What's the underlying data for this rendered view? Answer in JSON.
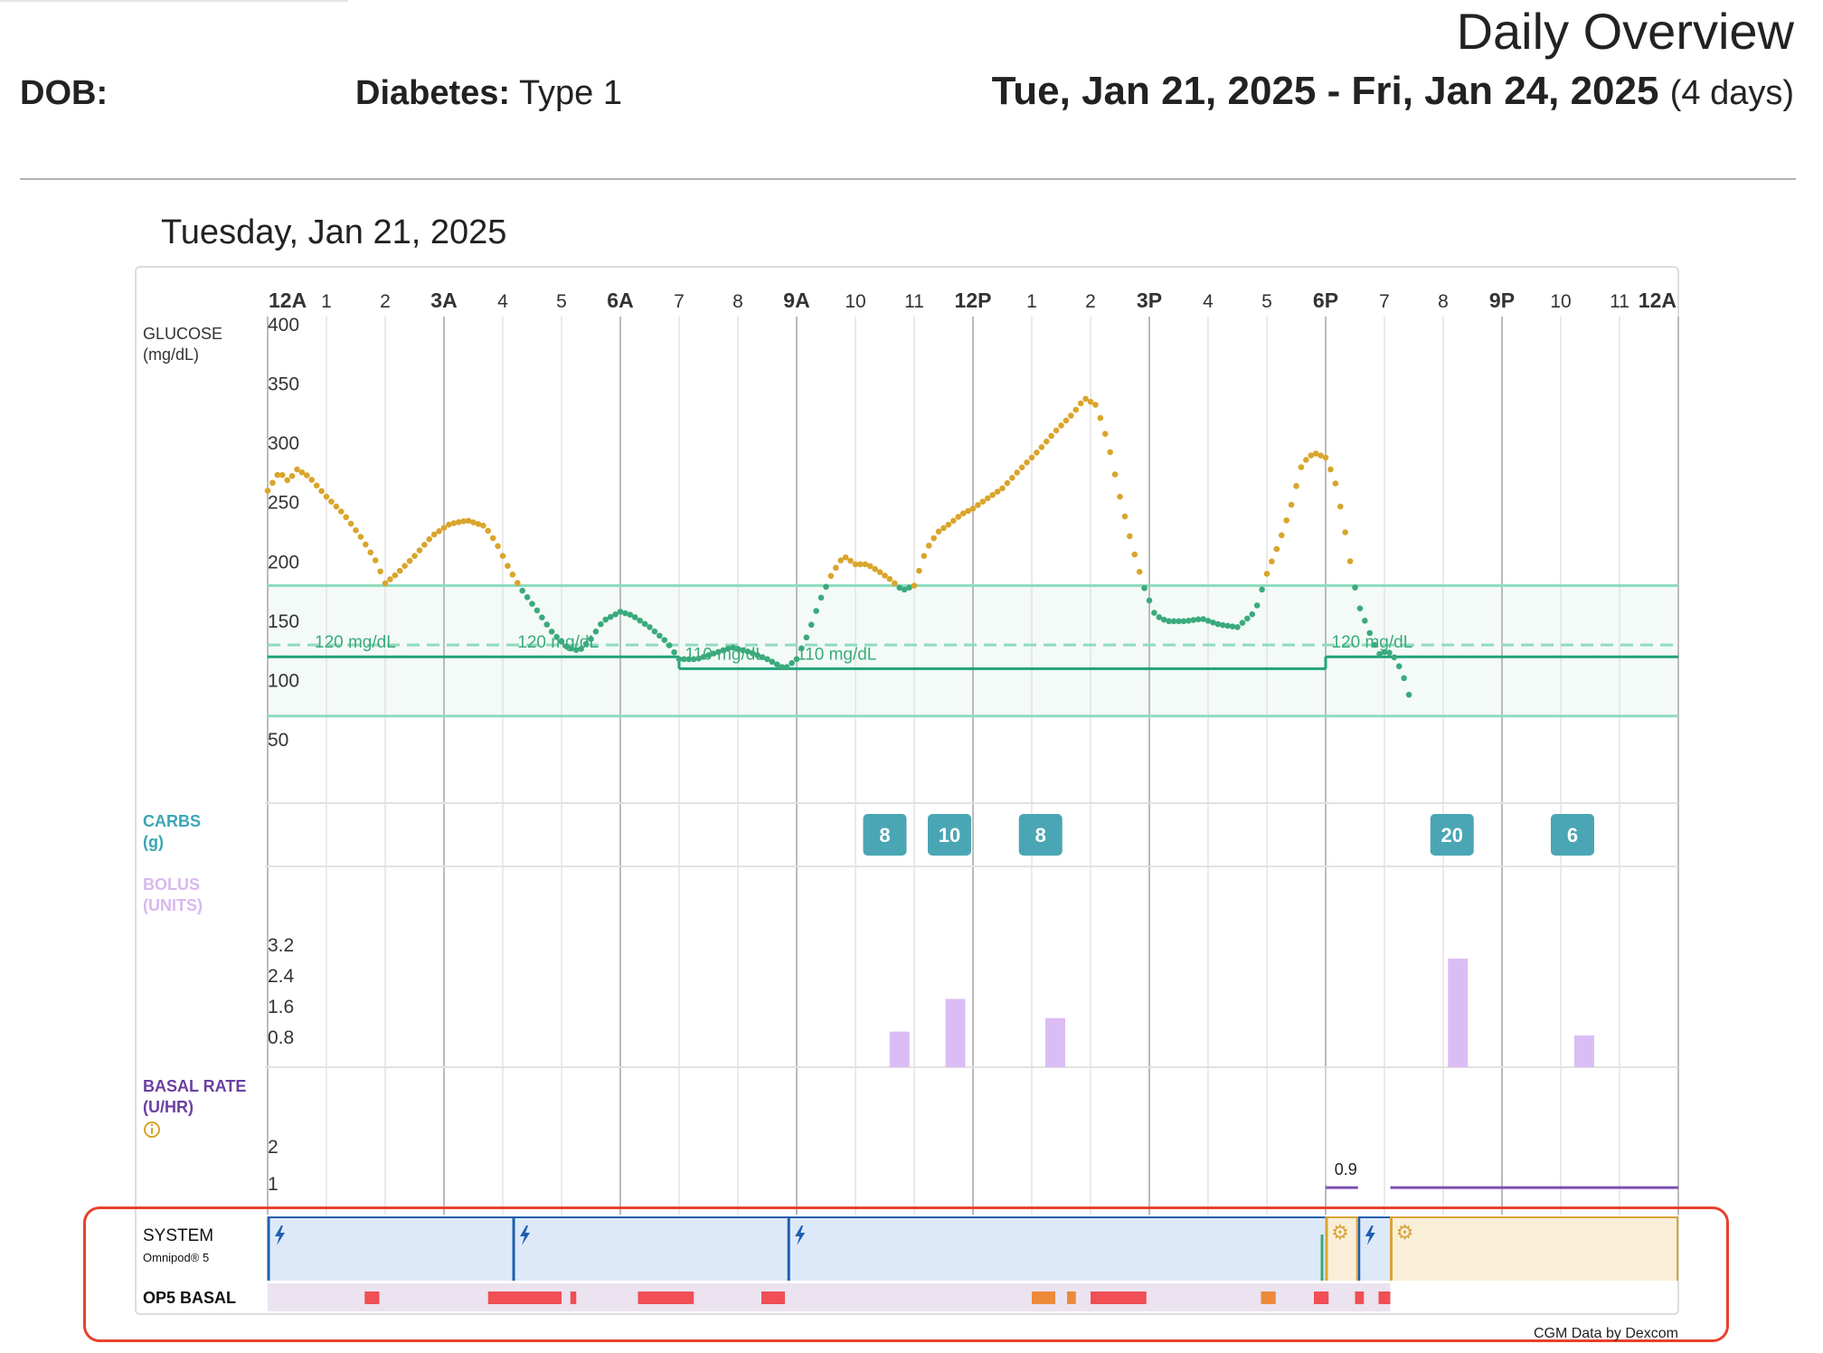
{
  "report": {
    "title": "Daily Overview",
    "dob_label": "DOB:",
    "diabetes_label": "Diabetes:",
    "diabetes_value": "Type 1",
    "date_range": "Tue, Jan 21, 2025 - Fri, Jan 24, 2025",
    "date_range_days": "(4 days)"
  },
  "day": {
    "title": "Tuesday, Jan 21, 2025",
    "hour_labels": [
      {
        "h": 0,
        "t": "12A",
        "major": true
      },
      {
        "h": 1,
        "t": "1"
      },
      {
        "h": 2,
        "t": "2"
      },
      {
        "h": 3,
        "t": "3A",
        "major": true
      },
      {
        "h": 4,
        "t": "4"
      },
      {
        "h": 5,
        "t": "5"
      },
      {
        "h": 6,
        "t": "6A",
        "major": true
      },
      {
        "h": 7,
        "t": "7"
      },
      {
        "h": 8,
        "t": "8"
      },
      {
        "h": 9,
        "t": "9A",
        "major": true
      },
      {
        "h": 10,
        "t": "10"
      },
      {
        "h": 11,
        "t": "11"
      },
      {
        "h": 12,
        "t": "12P",
        "major": true
      },
      {
        "h": 13,
        "t": "1"
      },
      {
        "h": 14,
        "t": "2"
      },
      {
        "h": 15,
        "t": "3P",
        "major": true
      },
      {
        "h": 16,
        "t": "4"
      },
      {
        "h": 17,
        "t": "5"
      },
      {
        "h": 18,
        "t": "6P",
        "major": true
      },
      {
        "h": 19,
        "t": "7"
      },
      {
        "h": 20,
        "t": "8"
      },
      {
        "h": 21,
        "t": "9P",
        "major": true
      },
      {
        "h": 22,
        "t": "10"
      },
      {
        "h": 23,
        "t": "11"
      },
      {
        "h": 24,
        "t": "12A",
        "major": true
      }
    ]
  },
  "rows": {
    "glucose": {
      "label": "GLUCOSE",
      "unit": "(mg/dL)"
    },
    "carbs": {
      "label": "CARBS",
      "unit": "(g)"
    },
    "bolus": {
      "label": "BOLUS",
      "unit": "(UNITS)"
    },
    "basal": {
      "label": "BASAL RATE",
      "unit": "(U/HR)",
      "info_icon": "info-circle-icon"
    },
    "system": {
      "label": "SYSTEM",
      "sublabel": "Omnipod® 5"
    },
    "op5basal": {
      "label": "OP5 BASAL"
    }
  },
  "chart_data": {
    "type": "scatter",
    "glucose": {
      "y_ticks": [
        400,
        350,
        300,
        250,
        200,
        150,
        100,
        50
      ],
      "ylim": [
        40,
        400
      ],
      "target_range": [
        70,
        180
      ],
      "target_line_dashed": 130,
      "target_segments": [
        {
          "start": 0,
          "end": 7,
          "value": 120
        },
        {
          "start": 7,
          "end": 18,
          "value": 110
        },
        {
          "start": 18,
          "end": 24,
          "value": 120
        }
      ],
      "target_labels": [
        {
          "h": 0.8,
          "v": 120,
          "text": "120 mg/dL"
        },
        {
          "h": 4.25,
          "v": 120,
          "text": "120 mg/dL"
        },
        {
          "h": 7.1,
          "v": 110,
          "text": "110 mg/dL"
        },
        {
          "h": 9.0,
          "v": 110,
          "text": "110 mg/dL"
        },
        {
          "h": 18.1,
          "v": 120,
          "text": "120 mg/dL"
        }
      ],
      "colors": {
        "high": "#d9a52b",
        "in_range": "#3aaa7c"
      },
      "keypoints": [
        [
          0,
          260
        ],
        [
          0.2,
          276
        ],
        [
          0.35,
          268
        ],
        [
          0.5,
          278
        ],
        [
          0.7,
          272
        ],
        [
          1,
          255
        ],
        [
          1.3,
          240
        ],
        [
          1.6,
          220
        ],
        [
          1.85,
          200
        ],
        [
          2.0,
          182
        ],
        [
          2.2,
          190
        ],
        [
          2.5,
          205
        ],
        [
          2.8,
          222
        ],
        [
          3.1,
          232
        ],
        [
          3.4,
          235
        ],
        [
          3.7,
          230
        ],
        [
          3.9,
          215
        ],
        [
          4.1,
          195
        ],
        [
          4.3,
          178
        ],
        [
          4.6,
          158
        ],
        [
          4.85,
          140
        ],
        [
          5.1,
          128
        ],
        [
          5.3,
          125
        ],
        [
          5.5,
          135
        ],
        [
          5.7,
          150
        ],
        [
          6.0,
          158
        ],
        [
          6.2,
          155
        ],
        [
          6.5,
          145
        ],
        [
          6.8,
          132
        ],
        [
          7.0,
          118
        ],
        [
          7.3,
          118
        ],
        [
          7.6,
          123
        ],
        [
          7.9,
          128
        ],
        [
          8.2,
          124
        ],
        [
          8.5,
          118
        ],
        [
          8.8,
          110
        ],
        [
          9.0,
          118
        ],
        [
          9.2,
          140
        ],
        [
          9.4,
          168
        ],
        [
          9.6,
          190
        ],
        [
          9.8,
          205
        ],
        [
          10.0,
          198
        ],
        [
          10.2,
          198
        ],
        [
          10.4,
          192
        ],
        [
          10.6,
          185
        ],
        [
          10.8,
          176
        ],
        [
          11.0,
          180
        ],
        [
          11.2,
          210
        ],
        [
          11.4,
          225
        ],
        [
          11.6,
          232
        ],
        [
          11.8,
          240
        ],
        [
          12.0,
          245
        ],
        [
          12.2,
          252
        ],
        [
          12.5,
          262
        ],
        [
          12.8,
          278
        ],
        [
          13.1,
          293
        ],
        [
          13.4,
          310
        ],
        [
          13.7,
          325
        ],
        [
          13.9,
          338
        ],
        [
          14.1,
          332
        ],
        [
          14.3,
          300
        ],
        [
          14.5,
          255
        ],
        [
          14.7,
          215
        ],
        [
          14.9,
          180
        ],
        [
          15.1,
          155
        ],
        [
          15.3,
          150
        ],
        [
          15.6,
          150
        ],
        [
          15.9,
          152
        ],
        [
          16.2,
          147
        ],
        [
          16.5,
          145
        ],
        [
          16.8,
          158
        ],
        [
          17.0,
          190
        ],
        [
          17.2,
          215
        ],
        [
          17.4,
          245
        ],
        [
          17.6,
          283
        ],
        [
          17.8,
          292
        ],
        [
          18.0,
          288
        ],
        [
          18.15,
          270
        ],
        [
          18.3,
          235
        ],
        [
          18.4,
          205
        ],
        [
          18.55,
          165
        ],
        [
          18.75,
          140
        ],
        [
          18.9,
          122
        ],
        [
          19.05,
          125
        ],
        [
          19.2,
          118
        ],
        [
          19.35,
          100
        ],
        [
          19.45,
          82
        ]
      ],
      "end_hour": 19.45
    },
    "carbs": [
      {
        "h": 10.5,
        "g": 8
      },
      {
        "h": 11.6,
        "g": 10
      },
      {
        "h": 13.15,
        "g": 8
      },
      {
        "h": 20.15,
        "g": 20
      },
      {
        "h": 22.2,
        "g": 6
      }
    ],
    "bolus": {
      "y_ticks": [
        3.2,
        2.4,
        1.6,
        0.8
      ],
      "ymax": 4.0,
      "values": [
        {
          "h": 10.75,
          "u": 0.95
        },
        {
          "h": 11.7,
          "u": 1.8
        },
        {
          "h": 13.4,
          "u": 1.3
        },
        {
          "h": 20.25,
          "u": 2.85
        },
        {
          "h": 22.4,
          "u": 0.85
        }
      ]
    },
    "basal": {
      "y_ticks": [
        2,
        1
      ],
      "ymax": 3.0,
      "label": {
        "h": 18.15,
        "text": "0.9"
      },
      "segments": [
        {
          "start": 18.0,
          "end": 18.55,
          "value": 0.9
        },
        {
          "start": 19.1,
          "end": 24,
          "value": 0.9
        }
      ]
    },
    "system": {
      "automated_segments": [
        {
          "start": 0,
          "end": 4.17
        },
        {
          "start": 4.17,
          "end": 8.85
        },
        {
          "start": 8.85,
          "end": 18.0
        },
        {
          "start": 18.55,
          "end": 19.1
        }
      ],
      "manual_segments": [
        {
          "start": 18.0,
          "end": 18.55
        },
        {
          "start": 19.1,
          "end": 24
        }
      ],
      "colors": {
        "automated": "#dde9f9",
        "automated_edge": "#1f5fb0",
        "manual": "#f9efd9",
        "manual_edge": "#d9a43a"
      }
    },
    "op5_basal": {
      "colors": {
        "red": "#ef4f55",
        "orange": "#ec8a3a",
        "bg": "#ebe3ef"
      },
      "blocks": [
        {
          "start": 1.65,
          "end": 1.9,
          "c": "red"
        },
        {
          "start": 3.75,
          "end": 5.0,
          "c": "red"
        },
        {
          "start": 5.15,
          "end": 5.25,
          "c": "red"
        },
        {
          "start": 6.3,
          "end": 7.25,
          "c": "red"
        },
        {
          "start": 8.4,
          "end": 8.8,
          "c": "red"
        },
        {
          "start": 13.0,
          "end": 13.4,
          "c": "orange"
        },
        {
          "start": 13.6,
          "end": 13.75,
          "c": "orange"
        },
        {
          "start": 14.0,
          "end": 14.95,
          "c": "red"
        },
        {
          "start": 16.9,
          "end": 17.15,
          "c": "orange"
        },
        {
          "start": 17.8,
          "end": 18.05,
          "c": "red"
        },
        {
          "start": 18.5,
          "end": 18.65,
          "c": "red"
        },
        {
          "start": 18.9,
          "end": 19.1,
          "c": "red"
        }
      ]
    }
  },
  "footer": {
    "credit": "CGM Data by Dexcom"
  }
}
